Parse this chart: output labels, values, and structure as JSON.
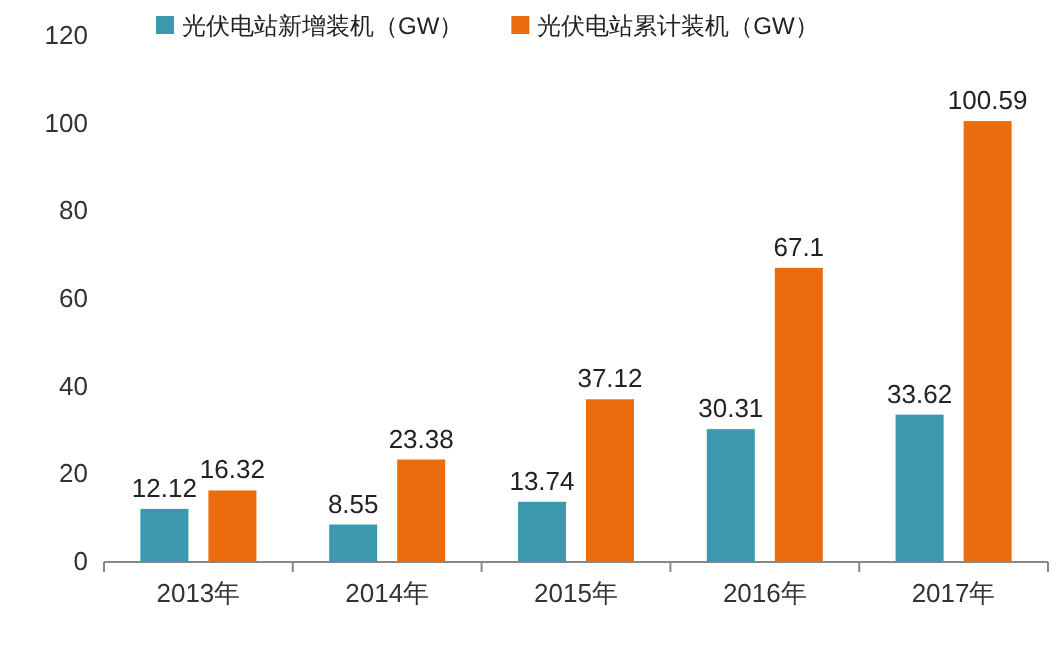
{
  "chart_data": {
    "type": "bar",
    "categories": [
      "2013年",
      "2014年",
      "2015年",
      "2016年",
      "2017年"
    ],
    "series": [
      {
        "name": "光伏电站新增装机（GW）",
        "color": "#3b98ae",
        "values": [
          12.12,
          8.55,
          13.74,
          30.31,
          33.62
        ]
      },
      {
        "name": "光伏电站累计装机（GW）",
        "color": "#ea6c0d",
        "values": [
          16.32,
          23.38,
          37.12,
          67.1,
          100.59
        ]
      }
    ],
    "ylim": [
      0,
      120
    ],
    "yticks": [
      0,
      20,
      40,
      60,
      80,
      100,
      120
    ],
    "data_labels": true,
    "legend": "top",
    "grid": false
  }
}
